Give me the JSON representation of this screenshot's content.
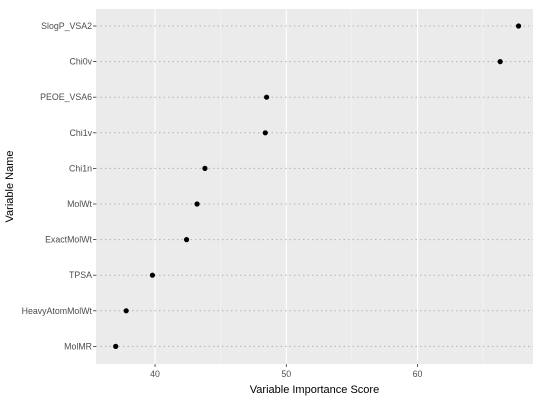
{
  "chart_data": {
    "type": "scatter",
    "title": "",
    "xlabel": "Variable Importance Score",
    "ylabel": "Variable Name",
    "xlim": [
      35.5,
      68.8
    ],
    "x_ticks": [
      40,
      50,
      60
    ],
    "grid": true,
    "categories": [
      "SlogP_VSA2",
      "Chi0v",
      "PEOE_VSA6",
      "Chi1v",
      "Chi1n",
      "MolWt",
      "ExactMolWt",
      "TPSA",
      "HeavyAtomMolWt",
      "MolMR"
    ],
    "values": [
      67.7,
      66.3,
      48.5,
      48.4,
      43.8,
      43.2,
      42.4,
      39.8,
      37.8,
      37.0
    ]
  },
  "colors": {
    "panel": "#ebebeb",
    "major_grid": "#ffffff",
    "minor_grid": "#f5f5f5",
    "dotted_guide": "#b3b3b3",
    "point": "#000000"
  }
}
